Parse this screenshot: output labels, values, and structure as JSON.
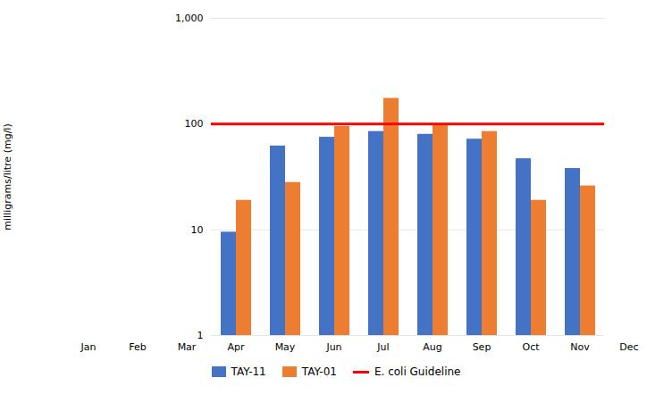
{
  "chart_data": {
    "type": "bar",
    "categories": [
      "Jan",
      "Feb",
      "Mar",
      "Apr",
      "May",
      "Jun",
      "Jul",
      "Aug",
      "Sep",
      "Oct",
      "Nov",
      "Dec"
    ],
    "series": [
      {
        "name": "TAY-11",
        "color": "#4472C4",
        "values": [
          null,
          null,
          null,
          9.5,
          62,
          75,
          85,
          80,
          72,
          47,
          38,
          null
        ]
      },
      {
        "name": "TAY-01",
        "color": "#ED7D31",
        "values": [
          null,
          null,
          null,
          19,
          28,
          95,
          175,
          97,
          85,
          19,
          26,
          null
        ]
      }
    ],
    "hlines": [
      {
        "name": "E. coli Guideline",
        "value": 100,
        "color": "#FF0000"
      }
    ],
    "ylabel": "milligrams/litre (mg/l)",
    "log": "y",
    "ylim": [
      1,
      1000
    ],
    "yticks": [
      1,
      10,
      100,
      {
        "value": 1000,
        "label": "1,000"
      }
    ],
    "grid": true,
    "legend": "bottom"
  }
}
